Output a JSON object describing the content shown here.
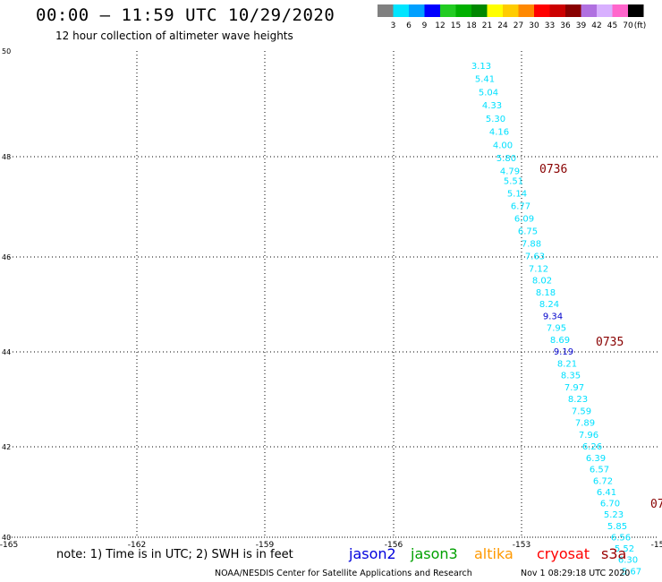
{
  "header": {
    "title": "00:00 – 11:59 UTC 10/29/2020",
    "subtitle": "12 hour collection of altimeter wave heights"
  },
  "legend": {
    "unit": "(ft)",
    "entries": [
      {
        "label": "3",
        "color": "#808080"
      },
      {
        "label": "6",
        "color": "#00e5ff"
      },
      {
        "label": "9",
        "color": "#00a0ff"
      },
      {
        "label": "12",
        "color": "#0000ff"
      },
      {
        "label": "15",
        "color": "#22cc22"
      },
      {
        "label": "18",
        "color": "#00b000"
      },
      {
        "label": "21",
        "color": "#008800"
      },
      {
        "label": "24",
        "color": "#ffff00"
      },
      {
        "label": "27",
        "color": "#ffcc00"
      },
      {
        "label": "30",
        "color": "#ff8800"
      },
      {
        "label": "33",
        "color": "#ff0000"
      },
      {
        "label": "36",
        "color": "#cc0000"
      },
      {
        "label": "39",
        "color": "#880000"
      },
      {
        "label": "42",
        "color": "#b070e0"
      },
      {
        "label": "45",
        "color": "#d8b0ff"
      },
      {
        "label": "70",
        "color": "#ff66cc"
      },
      {
        "label": "",
        "color": "#000000"
      }
    ]
  },
  "map": {
    "lon_ticks": [
      "-165",
      "-162",
      "-159",
      "-156",
      "-153",
      "-15"
    ],
    "lat_ticks": [
      "50",
      "48",
      "46",
      "44",
      "42",
      "40"
    ],
    "grid_color": "#000000"
  },
  "track": {
    "series_color": "#00e0ff",
    "points": [
      {
        "lat": 49.85,
        "value": "3.13",
        "color": "#00e0ff"
      },
      {
        "lat": 49.6,
        "value": "5.41",
        "color": "#00e0ff"
      },
      {
        "lat": 49.35,
        "value": "5.04",
        "color": "#00e0ff"
      },
      {
        "lat": 49.1,
        "value": "4.33",
        "color": "#00e0ff"
      },
      {
        "lat": 48.85,
        "value": "5.30",
        "color": "#00e0ff"
      },
      {
        "lat": 48.6,
        "value": "4.16",
        "color": "#00e0ff"
      },
      {
        "lat": 48.35,
        "value": "4.00",
        "color": "#00e0ff"
      },
      {
        "lat": 48.1,
        "value": "5.80",
        "color": "#00e0ff"
      },
      {
        "lat": 47.85,
        "value": "4.79",
        "color": "#00e0ff"
      },
      {
        "lat": 47.65,
        "value": "5.51",
        "color": "#00e0ff"
      },
      {
        "lat": 47.4,
        "value": "5.14",
        "color": "#00e0ff"
      },
      {
        "lat": 47.15,
        "value": "6.77",
        "color": "#00e0ff"
      },
      {
        "lat": 46.9,
        "value": "6.09",
        "color": "#00e0ff"
      },
      {
        "lat": 46.65,
        "value": "6.75",
        "color": "#00e0ff"
      },
      {
        "lat": 46.4,
        "value": "7.88",
        "color": "#00e0ff"
      },
      {
        "lat": 46.15,
        "value": "7.63",
        "color": "#00e0ff"
      },
      {
        "lat": 45.9,
        "value": "7.12",
        "color": "#00e0ff"
      },
      {
        "lat": 45.65,
        "value": "8.02",
        "color": "#00e0ff"
      },
      {
        "lat": 45.4,
        "value": "8.18",
        "color": "#00e0ff"
      },
      {
        "lat": 45.15,
        "value": "8.24",
        "color": "#00e0ff"
      },
      {
        "lat": 44.9,
        "value": "9.34",
        "color": "#0000cc"
      },
      {
        "lat": 44.65,
        "value": "7.95",
        "color": "#00e0ff"
      },
      {
        "lat": 44.4,
        "value": "8.69",
        "color": "#00e0ff"
      },
      {
        "lat": 44.15,
        "value": "9.19",
        "color": "#0000cc"
      },
      {
        "lat": 43.9,
        "value": "8.21",
        "color": "#00e0ff"
      },
      {
        "lat": 43.65,
        "value": "8.35",
        "color": "#00e0ff"
      },
      {
        "lat": 43.4,
        "value": "7.97",
        "color": "#00e0ff"
      },
      {
        "lat": 43.15,
        "value": "8.23",
        "color": "#00e0ff"
      },
      {
        "lat": 42.9,
        "value": "7.59",
        "color": "#00e0ff"
      },
      {
        "lat": 42.65,
        "value": "7.89",
        "color": "#00e0ff"
      },
      {
        "lat": 42.4,
        "value": "7.96",
        "color": "#00e0ff"
      },
      {
        "lat": 42.15,
        "value": "6.26",
        "color": "#00e0ff"
      },
      {
        "lat": 41.9,
        "value": "6.39",
        "color": "#00e0ff"
      },
      {
        "lat": 41.65,
        "value": "6.57",
        "color": "#00e0ff"
      },
      {
        "lat": 41.4,
        "value": "6.72",
        "color": "#00e0ff"
      },
      {
        "lat": 41.15,
        "value": "6.41",
        "color": "#00e0ff"
      },
      {
        "lat": 40.9,
        "value": "6.70",
        "color": "#00e0ff"
      },
      {
        "lat": 40.65,
        "value": "5.23",
        "color": "#00e0ff"
      },
      {
        "lat": 40.4,
        "value": "5.85",
        "color": "#00e0ff"
      },
      {
        "lat": 40.15,
        "value": "6.56",
        "color": "#00e0ff"
      },
      {
        "lat": 39.9,
        "value": "5.52",
        "color": "#00e0ff"
      },
      {
        "lat": 39.65,
        "value": "6.30",
        "color": "#00e0ff"
      },
      {
        "lat": 39.4,
        "value": "5.67",
        "color": "#00e0ff"
      }
    ],
    "time_labels": [
      {
        "text": "0736",
        "color": "#880000"
      },
      {
        "text": "0735",
        "color": "#880000"
      },
      {
        "text": "07",
        "color": "#880000"
      }
    ]
  },
  "footer": {
    "note": "note: 1) Time is in UTC; 2) SWH is in feet",
    "satellites": [
      {
        "name": "jason2",
        "color": "#0000dd"
      },
      {
        "name": "jason3",
        "color": "#00a000"
      },
      {
        "name": "altika",
        "color": "#ff9900"
      },
      {
        "name": "cryosat",
        "color": "#ff0000"
      },
      {
        "name": "s3a",
        "color": "#990000"
      }
    ],
    "credit": "NOAA/NESDIS Center for Satellite Applications and Research",
    "timestamp": "Nov  1 08:29:18 UTC 2020"
  }
}
